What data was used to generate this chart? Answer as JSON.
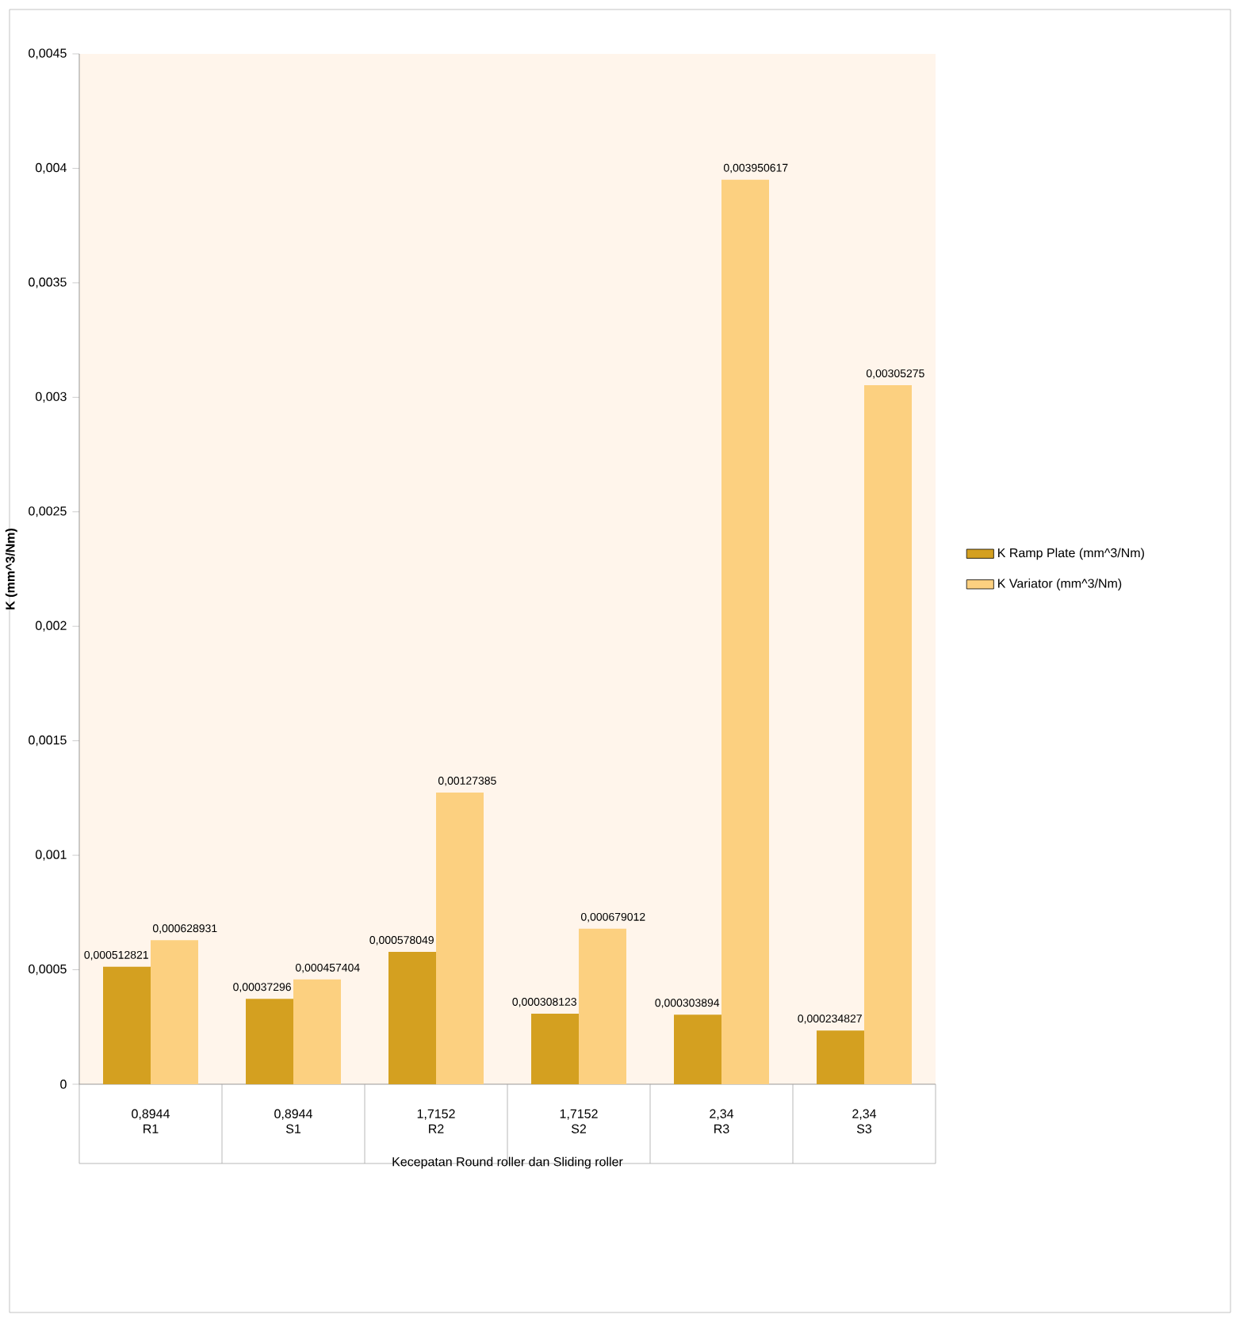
{
  "chart_data": {
    "type": "bar",
    "xlabel": "Kecepatan Round roller dan Sliding roller",
    "ylabel": "K (mm^3/Nm)",
    "categories": [
      "0,8944 R1",
      "0,8944 S1",
      "1,7152 R2",
      "1,7152 S2",
      "2,34 R3",
      "2,34 S3"
    ],
    "series": [
      {
        "name": "K Ramp Plate (mm^3/Nm)",
        "color": "#d4a020",
        "values": [
          0.000512821,
          0.00037296,
          0.000578049,
          0.000308123,
          0.000303894,
          0.000234827
        ],
        "value_labels": [
          "0,000512821",
          "0,00037296",
          "0,000578049",
          "0,000308123",
          "0,000303894",
          "0,000234827"
        ]
      },
      {
        "name": "K Variator (mm^3/Nm)",
        "color": "#fcd080",
        "values": [
          0.000628931,
          0.000457404,
          0.00127385,
          0.000679012,
          0.003950617,
          0.00305275
        ],
        "value_labels": [
          "0,000628931",
          "0,000457404",
          "0,00127385",
          "0,000679012",
          "0,003950617",
          "0,00305275"
        ]
      }
    ],
    "ylim": [
      0,
      0.0045
    ],
    "yticks": [
      {
        "value": 0,
        "label": "0"
      },
      {
        "value": 0.0005,
        "label": "0,0005"
      },
      {
        "value": 0.001,
        "label": "0,001"
      },
      {
        "value": 0.0015,
        "label": "0,0015"
      },
      {
        "value": 0.002,
        "label": "0,002"
      },
      {
        "value": 0.0025,
        "label": "0,0025"
      },
      {
        "value": 0.003,
        "label": "0,003"
      },
      {
        "value": 0.0035,
        "label": "0,0035"
      },
      {
        "value": 0.004,
        "label": "0,004"
      },
      {
        "value": 0.0045,
        "label": "0,0045"
      }
    ],
    "legend": "right"
  }
}
